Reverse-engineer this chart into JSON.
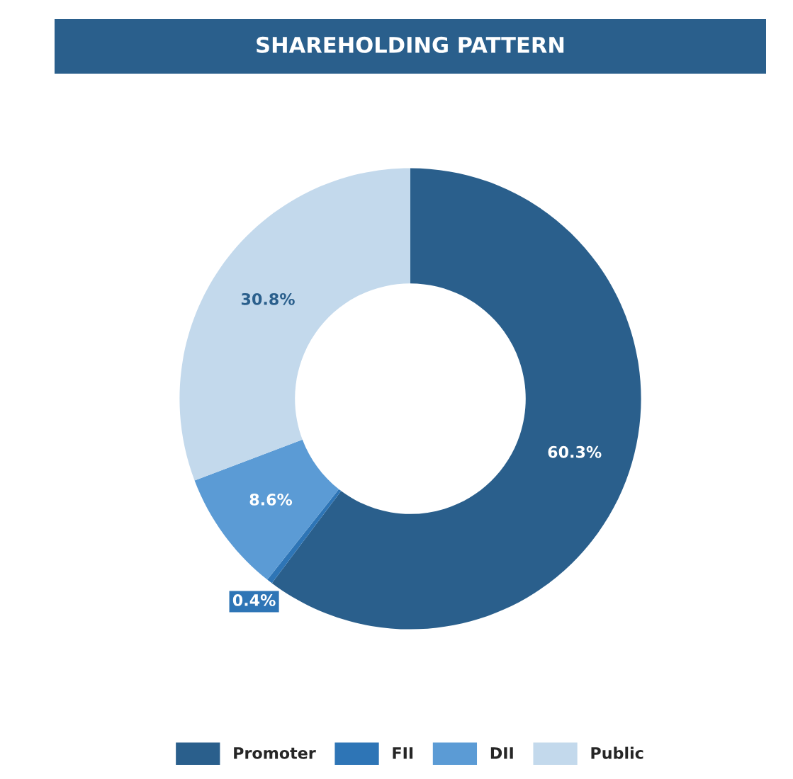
{
  "chart_data": {
    "type": "donut",
    "title": "SHAREHOLDING PATTERN",
    "categories": [
      "Promoter",
      "FII",
      "DII",
      "Public"
    ],
    "values": [
      60.3,
      0.4,
      8.6,
      30.8
    ],
    "colors": [
      "#2a5f8c",
      "#2e75b6",
      "#5b9bd5",
      "#c3d9ec"
    ],
    "value_labels": [
      "60.3%",
      "0.4%",
      "8.6%",
      "30.8%"
    ],
    "legend": "bottom"
  }
}
